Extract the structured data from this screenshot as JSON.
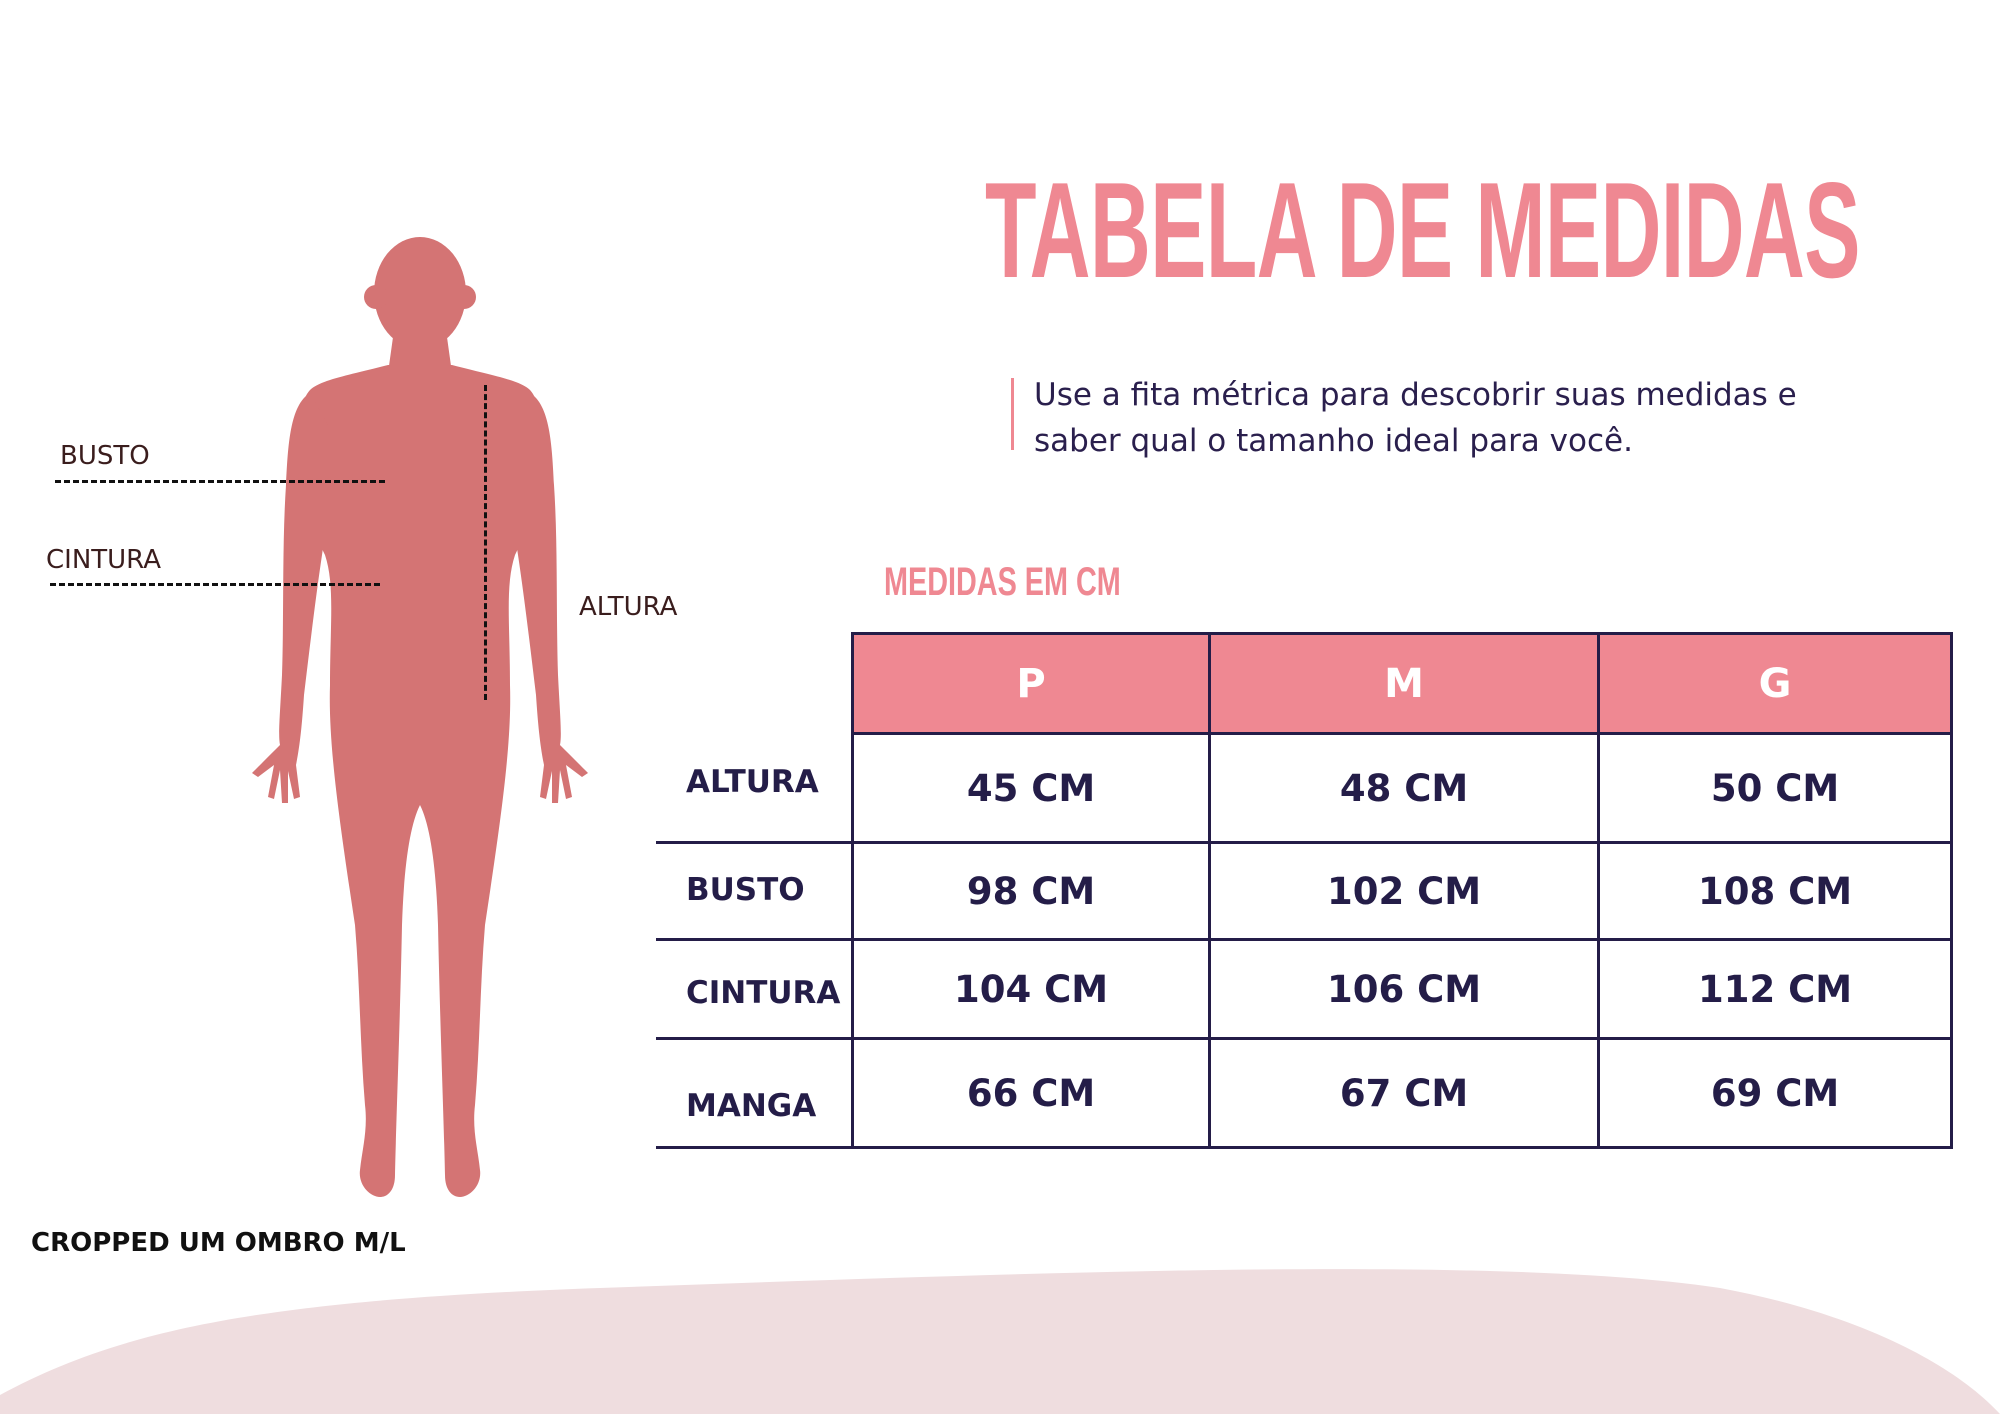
{
  "title": "TABELA DE MEDIDAS",
  "intro": {
    "line1": "Use a fita métrica para descobrir suas medidas e",
    "line2": "saber qual o tamanho ideal para você."
  },
  "units_heading": "MEDIDAS EM CM",
  "table": {
    "headers": [
      "P",
      "M",
      "G"
    ],
    "rows": [
      {
        "label": "ALTURA",
        "values": [
          "45 CM",
          "48 CM",
          "50 CM"
        ]
      },
      {
        "label": "BUSTO",
        "values": [
          "98 CM",
          "102 CM",
          "108 CM"
        ]
      },
      {
        "label": "CINTURA",
        "values": [
          "104 CM",
          "106 CM",
          "112 CM"
        ]
      },
      {
        "label": "MANGA",
        "values": [
          "66 CM",
          "67 CM",
          "69 CM"
        ]
      }
    ]
  },
  "figure": {
    "labels": {
      "busto": "BUSTO",
      "cintura": "CINTURA",
      "altura": "ALTURA"
    }
  },
  "product_name": "CROPPED UM OMBRO M/L",
  "colors": {
    "accent": "#ef8892",
    "silhouette": "#d47474",
    "text_dark": "#241d48",
    "bottom_wave": "#efdddf"
  }
}
